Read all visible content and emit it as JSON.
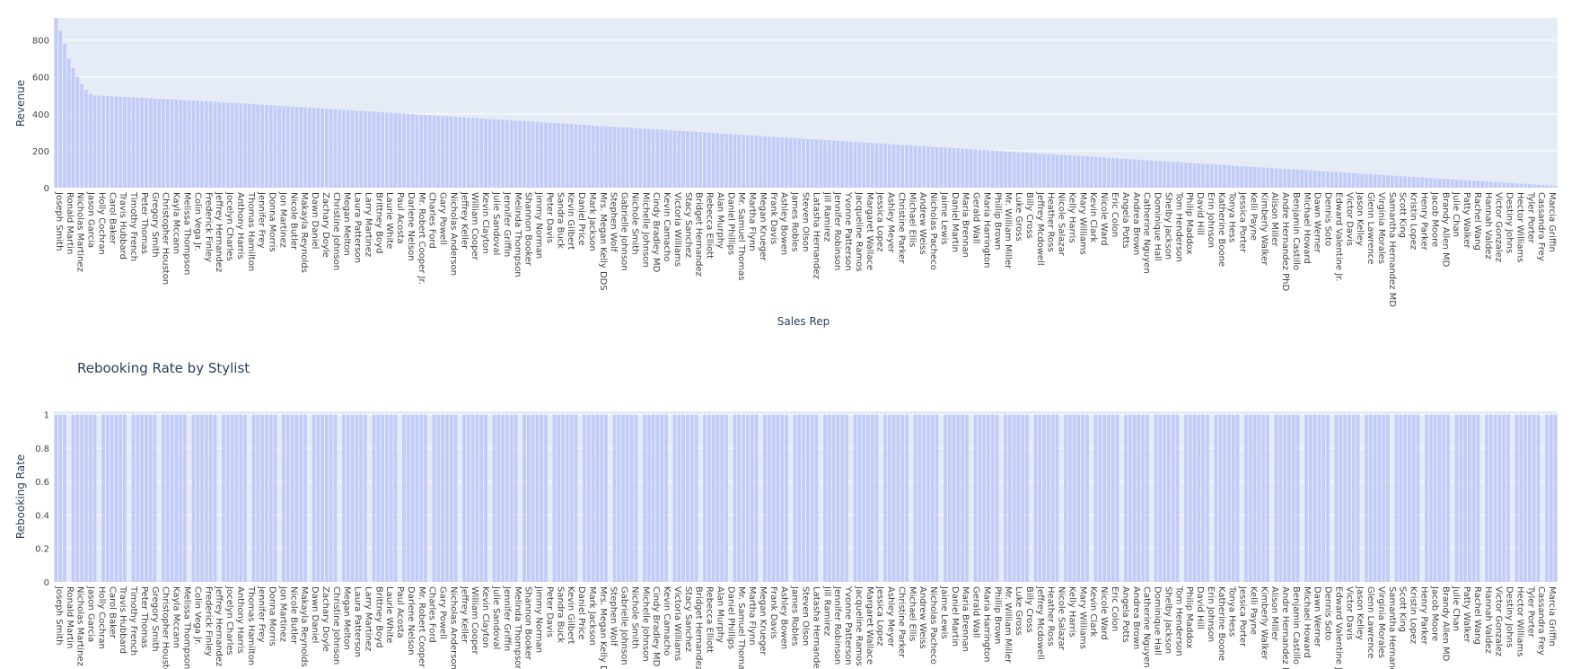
{
  "chart_data": [
    {
      "type": "bar",
      "title": "",
      "xlabel": "Sales Rep",
      "ylabel": "Revenue",
      "ylim": [
        0,
        920
      ],
      "yticks": [
        0,
        200,
        400,
        600,
        800
      ],
      "grid": true,
      "bar_color": "#c3ccf8",
      "plot_bg": "#e5ecf6",
      "n_bars": 350,
      "values_profile": {
        "head": [
          920,
          850,
          780,
          700,
          650,
          600,
          560,
          530,
          510
        ],
        "plateau_start": 500,
        "plateau_end": 470,
        "tail_end": 10
      },
      "tick_labels": [
        "Joseph Smith",
        "Ronald Martin",
        "Nicholas Martinez",
        "Jason Garcia",
        "Holly Cochran",
        "Carol Baker",
        "Travis Hubbard",
        "Timothy French",
        "Peter Thomas",
        "Gregory Smith",
        "Christopher Houston",
        "Kayla Mccann",
        "Melissa Thompson",
        "Colin Vega Jr.",
        "Frederick Finley",
        "Jeffrey Hernandez",
        "Jocelyn Charles",
        "Anthony Harris",
        "Thomas Hamilton",
        "Jennifer Frey",
        "Donna Morris",
        "Jon Martinez",
        "Nicole Butler",
        "Makayla Reynolds",
        "Dawn Daniel",
        "Zachary Doyle",
        "Christine Johnson",
        "Megan Melton",
        "Laura Patterson",
        "Larry Martinez",
        "Brittney Boyd",
        "Laurie White",
        "Paul Acosta",
        "Darlene Nelson",
        "Mr. Robert Cooper Jr.",
        "Charles Ford",
        "Gary Powell",
        "Nicholas Anderson",
        "Jeffrey Keller",
        "William Cooper",
        "Kevin Clayton",
        "Julie Sandoval",
        "Jennifer Griffin",
        "Melinda Thompson",
        "Shannon Booker",
        "Jimmy Norman",
        "Peter Davis",
        "Sandra Buck",
        "Kevin Gilbert",
        "Daniel Price",
        "Mark Jackson",
        "Mrs. Megan Kelly DDS",
        "Stephen Wolf",
        "Gabrielle Johnson",
        "Nichole Smith",
        "Michelle Johnson",
        "Cindy Bradley MD",
        "Kevin Camacho",
        "Victoria Williams",
        "Stacy Sanchez",
        "Bridget Hernandez",
        "Rebecca Elliott",
        "Alan Murphy",
        "Daniel Phillips",
        "Mr. Samuel Thomas",
        "Martha Flynn",
        "Megan Krueger",
        "Frank Davis",
        "Ashley Bowen",
        "James Robles",
        "Steven Olson",
        "Latasha Hernandez",
        "Jill Ramirez",
        "Jennifer Robinson",
        "Yvonne Patterson",
        "Jacqueline Ramos",
        "Margaret Wallace",
        "Jessica Lopez",
        "Ashley Meyer",
        "Christine Parker",
        "Michael Ellis",
        "Andrew Weiss",
        "Nicholas Pacheco",
        "Jaime Lewis",
        "Daniel Martin",
        "Maria Brennan",
        "Gerald Wall",
        "Maria Harrington",
        "Phillip Brown",
        "Mr. William Miller",
        "Luke Gross",
        "Billy Cross",
        "Jeffrey Mcdowell",
        "Heather Ross",
        "Nicole Salazar",
        "Kelly Harris",
        "Mary Williams",
        "Kevin Clark",
        "Nicole Ward",
        "Eric Colon",
        "Angela Potts",
        "Andrea Brown",
        "Catherine Nguyen",
        "Dominique Hall",
        "Shelby Jackson",
        "Tom Henderson",
        "Philip Maddox",
        "David Hill",
        "Erin Johnson",
        "Katherine Boone",
        "Tonya Hess",
        "Jessica Porter",
        "Kelli Payne",
        "Kimberly Walker",
        "Alison Miller",
        "Andre Hernandez PhD",
        "Benjamin Castillo",
        "Michael Howard",
        "Dawn Werner",
        "Dennis Soto",
        "Edward Valentine Jr.",
        "Victor Davis",
        "Jason Kelley",
        "Glenn Lawrence",
        "Virginia Morales",
        "Samantha Hernandez MD",
        "Scott King",
        "Kristin Lopez",
        "Henry Parker",
        "Jacob Moore",
        "Brandy Allen MD",
        "Julie Chan",
        "Patty Walker",
        "Rachel Wang",
        "Hannah Valdez",
        "Victor Gonzalez",
        "Destiny Johns",
        "Hector Williams",
        "Tyler Porter",
        "Cassandra Frey",
        "Marcia Griffin"
      ]
    },
    {
      "type": "bar",
      "title": "Rebooking Rate by Stylist",
      "xlabel": "",
      "ylabel": "Rebooking Rate",
      "ylim": [
        0,
        1.02
      ],
      "yticks": [
        0,
        0.2,
        0.4,
        0.6,
        0.8,
        1
      ],
      "grid": true,
      "bar_color": "#c3ccf8",
      "plot_bg": "#e5ecf6",
      "n_bars": 350,
      "value": 1,
      "gap_every": 7
    }
  ]
}
